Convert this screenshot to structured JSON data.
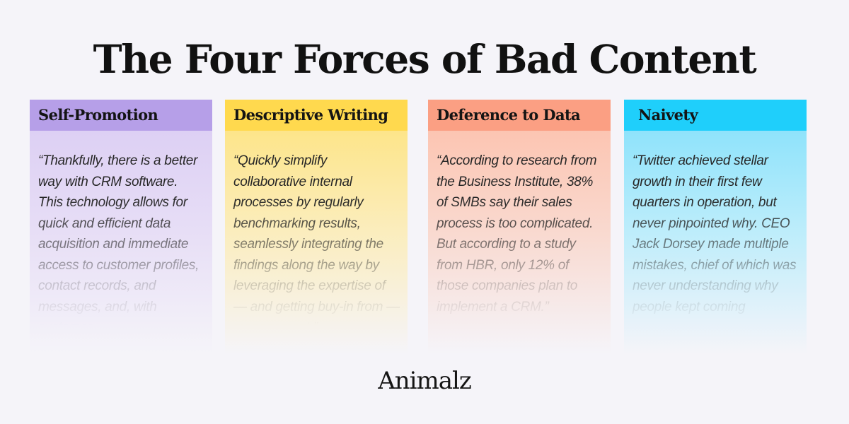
{
  "title": "The Four Forces of Bad Content",
  "cards": [
    {
      "heading": "Self-Promotion",
      "quote": "“Thankfully, there is a better way with CRM software. This technology allows for quick and efficient data acquisition and immediate access to customer profiles, contact records, and messages, and, with customer",
      "header_color": "#b69fe8"
    },
    {
      "heading": "Descriptive Writing",
      "quote": "“Quickly simplify collaborative internal processes by regularly benchmarking results, seamlessly integrating the findings along the way by leveraging the expertise of — and getting buy-in from — management.”",
      "header_color": "#ffd94e"
    },
    {
      "heading": "Deference to Data",
      "quote": "“According to research from the Business Institute, 38% of SMBs say their sales process is too complicated. But according to a study from HBR, only 12% of those companies plan to implement a CRM.”",
      "header_color": "#fb9f83"
    },
    {
      "heading": "Naivety",
      "quote": "“Twitter achieved stellar growth in their first few quarters in operation, but never pinpointed why. CEO Jack Dorsey made multiple mistakes, chief of which was never understanding why people kept coming",
      "header_color": "#1fcffb"
    }
  ],
  "logo": "Animalz"
}
